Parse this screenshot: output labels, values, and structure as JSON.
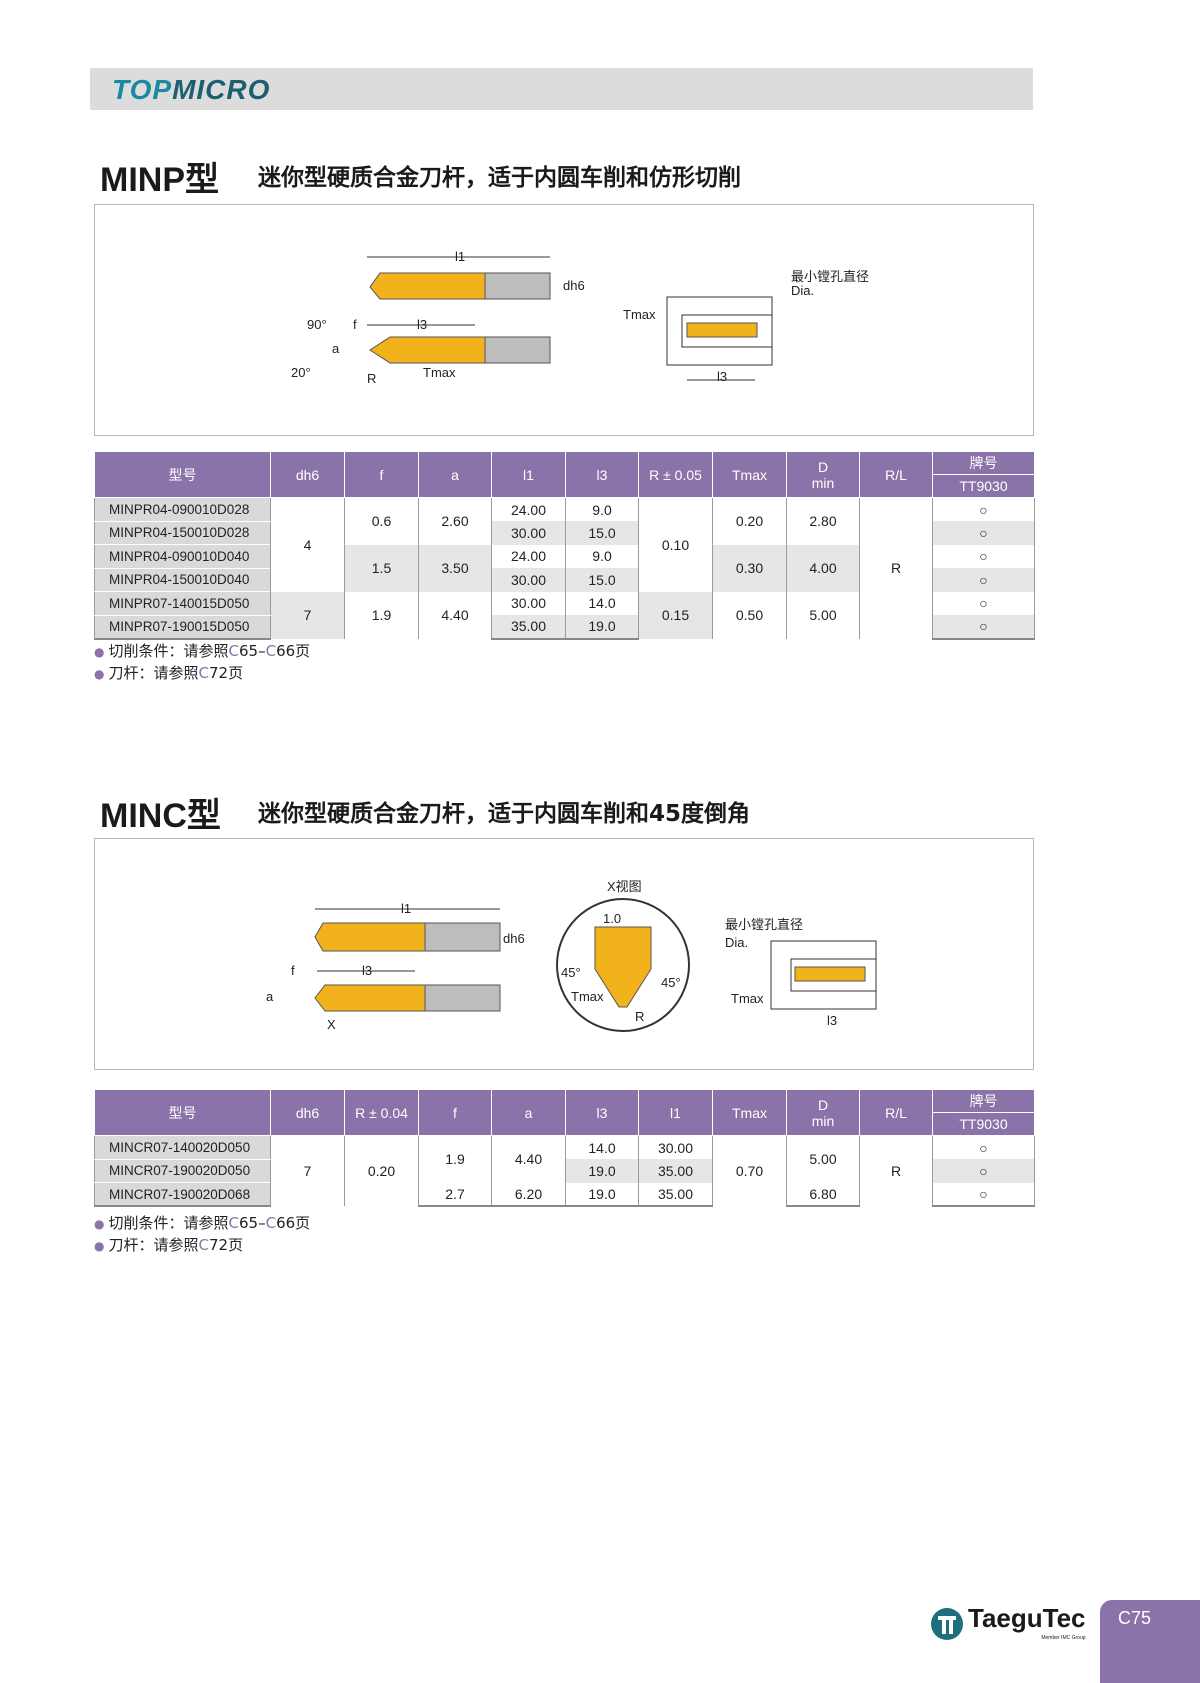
{
  "header": {
    "logo_top": "TOP",
    "logo_micro": "MICRO"
  },
  "section1": {
    "title": "MINP型",
    "subtitle": "迷你型硬质合金刀杆，适于内圆车削和仿形切削",
    "diagram": {
      "l1": "l1",
      "dh6": "dh6",
      "l3": "l3",
      "angle90": "90°",
      "angle20": "20°",
      "f": "f",
      "a": "a",
      "R": "R",
      "tmax": "Tmax",
      "min_bore": "最小镗孔直径",
      "dia": "Dia.",
      "tmax2": "Tmax",
      "l3b": "l3"
    },
    "table": {
      "headers": [
        "型号",
        "dh6",
        "f",
        "a",
        "l1",
        "l3",
        "R ± 0.05",
        "Tmax",
        "D\nmin",
        "R/L"
      ],
      "grade_header": "牌号",
      "grade": "TT9030",
      "columns": [
        [
          {
            "v": "MINPR04-090010D028",
            "n": 1
          },
          {
            "v": "MINPR04-150010D028",
            "n": 1
          },
          {
            "v": "MINPR04-090010D040",
            "n": 1
          },
          {
            "v": "MINPR04-150010D040",
            "n": 1
          },
          {
            "v": "MINPR07-140015D050",
            "n": 1
          },
          {
            "v": "MINPR07-190015D050",
            "n": 1
          }
        ],
        [
          {
            "v": "4",
            "n": 4
          },
          {
            "v": "7",
            "n": 2
          }
        ],
        [
          {
            "v": "0.6",
            "n": 2
          },
          {
            "v": "1.5",
            "n": 2
          },
          {
            "v": "1.9",
            "n": 2
          }
        ],
        [
          {
            "v": "2.60",
            "n": 2
          },
          {
            "v": "3.50",
            "n": 2
          },
          {
            "v": "4.40",
            "n": 2
          }
        ],
        [
          {
            "v": "24.00",
            "n": 1
          },
          {
            "v": "30.00",
            "n": 1
          },
          {
            "v": "24.00",
            "n": 1
          },
          {
            "v": "30.00",
            "n": 1
          },
          {
            "v": "30.00",
            "n": 1
          },
          {
            "v": "35.00",
            "n": 1
          }
        ],
        [
          {
            "v": "9.0",
            "n": 1
          },
          {
            "v": "15.0",
            "n": 1
          },
          {
            "v": "9.0",
            "n": 1
          },
          {
            "v": "15.0",
            "n": 1
          },
          {
            "v": "14.0",
            "n": 1
          },
          {
            "v": "19.0",
            "n": 1
          }
        ],
        [
          {
            "v": "0.10",
            "n": 4
          },
          {
            "v": "0.15",
            "n": 2
          }
        ],
        [
          {
            "v": "0.20",
            "n": 2
          },
          {
            "v": "0.30",
            "n": 2
          },
          {
            "v": "0.50",
            "n": 2
          }
        ],
        [
          {
            "v": "2.80",
            "n": 2
          },
          {
            "v": "4.00",
            "n": 2
          },
          {
            "v": "5.00",
            "n": 2
          }
        ],
        [
          {
            "v": "R",
            "n": 6
          }
        ],
        [
          {
            "v": "○",
            "n": 1
          },
          {
            "v": "○",
            "n": 1
          },
          {
            "v": "○",
            "n": 1
          },
          {
            "v": "○",
            "n": 1
          },
          {
            "v": "○",
            "n": 1
          },
          {
            "v": "○",
            "n": 1
          }
        ]
      ]
    },
    "notes": [
      {
        "a": "切削条件：请参照",
        "b": "C",
        "c": "65–",
        "d": "C",
        "e": "66页"
      },
      {
        "a": "刀杆：请参照",
        "b": "C",
        "c": "72页",
        "d": "",
        "e": ""
      }
    ]
  },
  "section2": {
    "title": "MINC型",
    "subtitle": "迷你型硬质合金刀杆，适于内圆车削和45度倒角",
    "diagram": {
      "l1": "l1",
      "dh6": "dh6",
      "l3": "l3",
      "f": "f",
      "a": "a",
      "x": "X",
      "xview": "X视图",
      "w10": "1.0",
      "a45l": "45°",
      "a45r": "45°",
      "tmax": "Tmax",
      "R": "R",
      "min_bore": "最小镗孔直径",
      "dia": "Dia.",
      "tmax2": "Tmax",
      "l3b": "l3"
    },
    "table": {
      "headers": [
        "型号",
        "dh6",
        "R ± 0.04",
        "f",
        "a",
        "l3",
        "l1",
        "Tmax",
        "D\nmin",
        "R/L"
      ],
      "grade_header": "牌号",
      "grade": "TT9030",
      "columns": [
        [
          {
            "v": "MINCR07-140020D050",
            "n": 1
          },
          {
            "v": "MINCR07-190020D050",
            "n": 1
          },
          {
            "v": "MINCR07-190020D068",
            "n": 1
          }
        ],
        [
          {
            "v": "7",
            "n": 3
          }
        ],
        [
          {
            "v": "0.20",
            "n": 3
          }
        ],
        [
          {
            "v": "1.9",
            "n": 2
          },
          {
            "v": "2.7",
            "n": 1
          }
        ],
        [
          {
            "v": "4.40",
            "n": 2
          },
          {
            "v": "6.20",
            "n": 1
          }
        ],
        [
          {
            "v": "14.0",
            "n": 1
          },
          {
            "v": "19.0",
            "n": 1
          },
          {
            "v": "19.0",
            "n": 1
          }
        ],
        [
          {
            "v": "30.00",
            "n": 1
          },
          {
            "v": "35.00",
            "n": 1
          },
          {
            "v": "35.00",
            "n": 1
          }
        ],
        [
          {
            "v": "0.70",
            "n": 3
          }
        ],
        [
          {
            "v": "5.00",
            "n": 2
          },
          {
            "v": "6.80",
            "n": 1
          }
        ],
        [
          {
            "v": "R",
            "n": 3
          }
        ],
        [
          {
            "v": "○",
            "n": 1
          },
          {
            "v": "○",
            "n": 1
          },
          {
            "v": "○",
            "n": 1
          }
        ]
      ]
    },
    "notes": [
      {
        "a": "切削条件：请参照",
        "b": "C",
        "c": "65–",
        "d": "C",
        "e": "66页"
      },
      {
        "a": "刀杆：请参照",
        "b": "C",
        "c": "72页",
        "d": "",
        "e": ""
      }
    ]
  },
  "footer": {
    "brand": "TaeguTec",
    "brand_sub": "Member IMC Group",
    "page": "C75"
  },
  "colors": {
    "header_purple": "#8a73a9",
    "insert_gold": "#f2b21c",
    "shank_gray": "#bdbdbd",
    "logo_teal": "#1a8aa0"
  }
}
